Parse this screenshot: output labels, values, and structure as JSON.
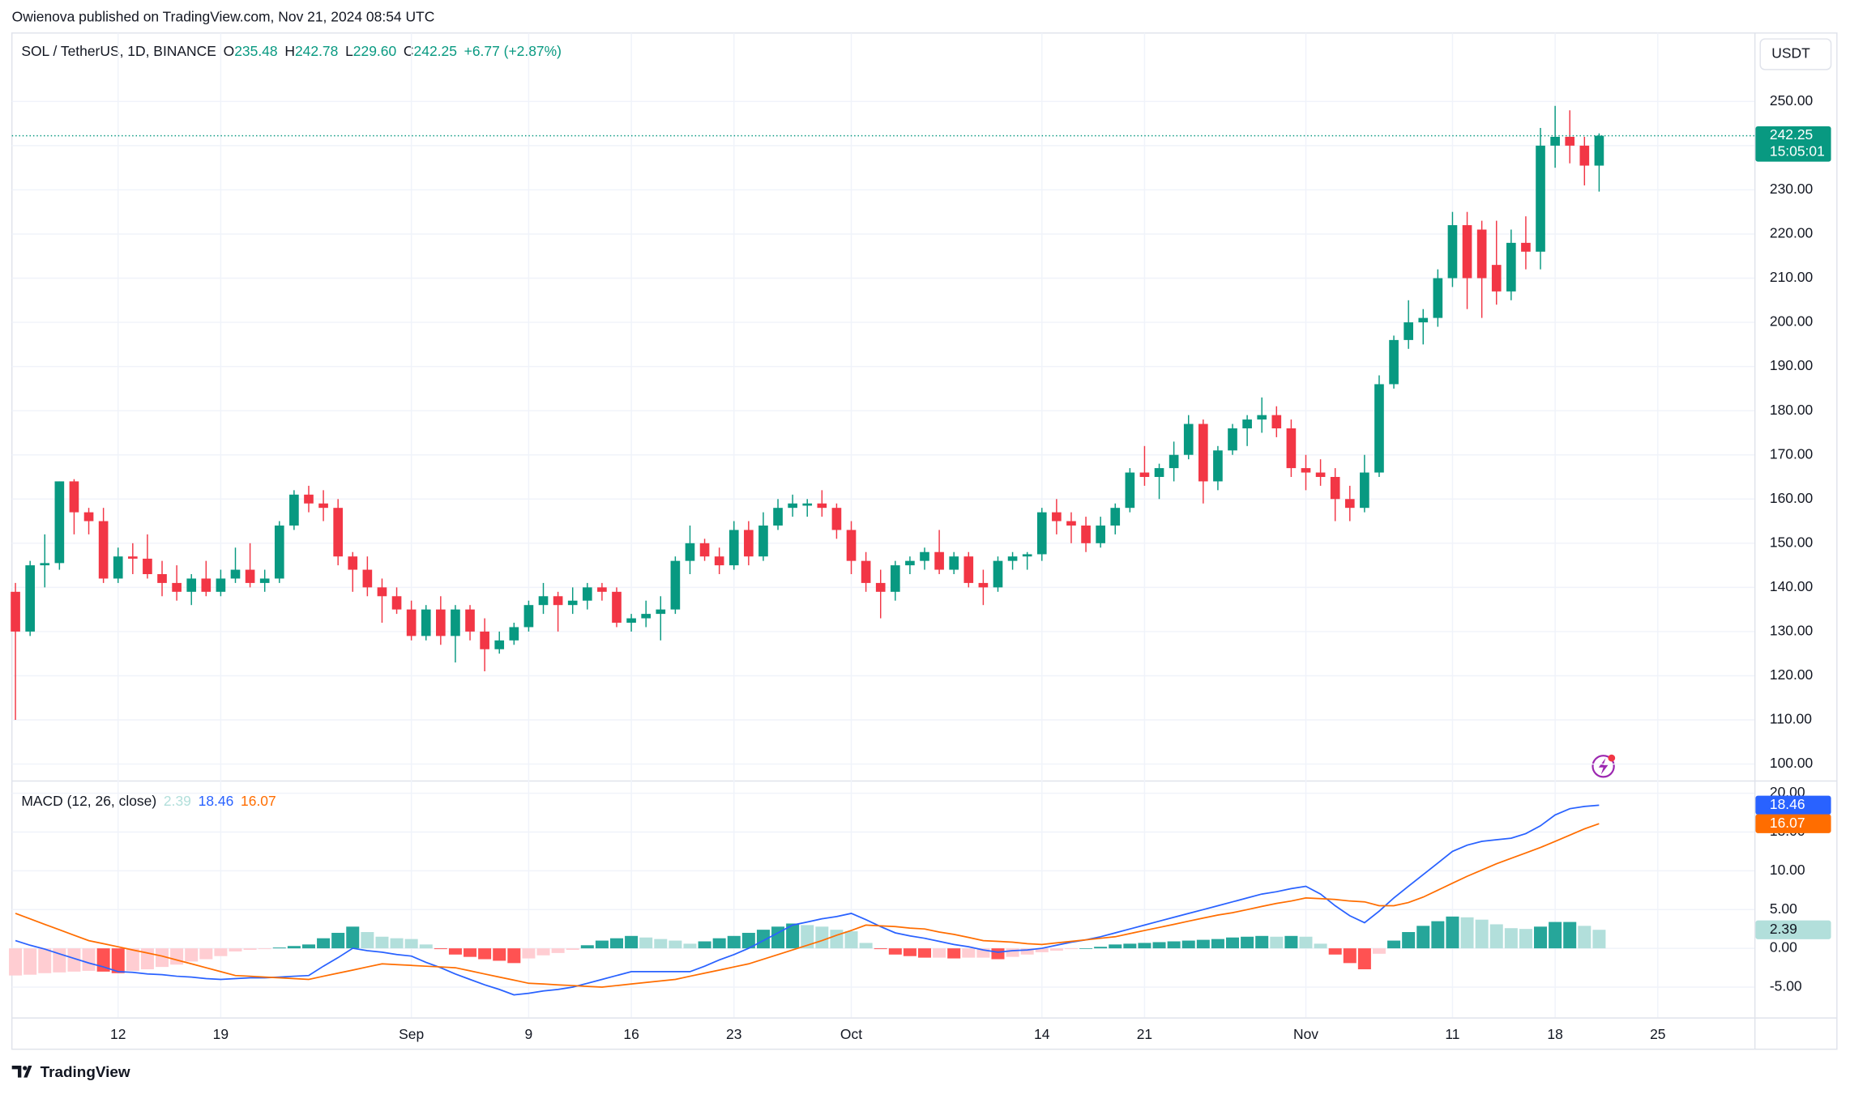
{
  "header": {
    "published": "Owienova published on TradingView.com, Nov 21, 2024 08:54 UTC",
    "symbol": "SOL / TetherUS, 1D, BINANCE",
    "ohlc": [
      {
        "key": "O",
        "value": "235.48"
      },
      {
        "key": "H",
        "value": "242.78"
      },
      {
        "key": "L",
        "value": "229.60"
      },
      {
        "key": "C",
        "value": "242.25"
      }
    ],
    "change": "+6.77 (+2.87%)",
    "currency": "USDT",
    "countdown": "15:05:01",
    "brand": "TradingView"
  },
  "chart_data": [
    {
      "type": "candlestick",
      "up_color": "#089981",
      "down_color": "#f23645",
      "grid": true,
      "open": [
        139,
        130,
        145,
        145.5,
        164,
        157,
        155,
        142,
        147,
        146.5,
        143,
        141,
        139,
        142,
        139,
        142,
        144,
        141,
        142,
        154,
        161,
        159,
        158,
        147,
        144,
        140,
        138,
        135,
        129,
        135,
        129,
        135,
        130,
        126,
        128,
        131,
        136,
        138,
        136,
        137,
        140,
        139,
        132,
        133,
        134,
        135,
        146,
        150,
        147,
        145,
        153,
        147,
        154,
        158,
        158.5,
        159,
        158,
        153,
        146,
        141,
        139,
        145,
        146,
        148,
        144,
        147,
        141,
        140,
        146,
        147,
        147.5,
        157,
        155,
        154,
        150,
        154,
        158,
        166,
        165,
        167,
        170,
        177,
        164,
        171,
        176,
        178,
        179,
        176,
        167,
        166,
        165,
        160,
        158,
        166,
        186,
        196,
        200,
        201,
        210,
        222,
        221,
        213,
        207,
        218,
        216,
        240,
        242,
        240,
        235.48
      ],
      "high": [
        141,
        146,
        152,
        164,
        164.5,
        158,
        158,
        149,
        150,
        152,
        146,
        145,
        143,
        146,
        144,
        149,
        150,
        144,
        155,
        162,
        163,
        162,
        160,
        148,
        147,
        142,
        140,
        137,
        136,
        138,
        136,
        136,
        133,
        130,
        132,
        137,
        141,
        139,
        140,
        141,
        141,
        140,
        134,
        137,
        138,
        147,
        154,
        151,
        149,
        155,
        155,
        157,
        160,
        161,
        160,
        162,
        159,
        155,
        148,
        144,
        146,
        147,
        149,
        153,
        148,
        148,
        144,
        147,
        148,
        148,
        158,
        160,
        157,
        156,
        156,
        159,
        167,
        172,
        168,
        173,
        179,
        178,
        172,
        177,
        179,
        183,
        181,
        178,
        170,
        169,
        167,
        163,
        170,
        188,
        197,
        205,
        203,
        212,
        225,
        225,
        223,
        223,
        221,
        224,
        244,
        249,
        248,
        242,
        242.78
      ],
      "low": [
        110,
        129,
        140,
        144,
        152,
        152,
        141,
        141,
        143,
        142,
        138,
        137,
        136,
        138,
        138,
        141,
        140,
        139,
        141,
        153,
        157,
        155,
        145,
        139,
        138,
        132,
        134,
        128,
        128,
        127,
        123,
        128,
        121,
        125,
        127,
        130,
        134,
        130,
        134,
        135,
        137,
        131,
        130,
        131,
        128,
        134,
        143,
        146,
        143,
        144,
        145,
        146,
        153,
        156,
        156,
        156,
        151,
        143,
        139,
        133,
        137,
        143,
        144,
        143,
        143,
        140,
        136,
        139,
        144,
        144,
        146,
        152,
        150,
        148,
        149,
        152,
        157,
        163,
        160,
        164,
        169,
        159,
        162,
        170,
        172,
        175,
        174,
        165,
        162,
        163,
        155,
        155,
        157,
        165,
        185,
        194,
        195,
        199,
        208,
        203,
        201,
        204,
        205,
        212,
        212,
        235,
        236,
        231,
        229.6
      ],
      "close": [
        130,
        145,
        145.5,
        164,
        157,
        155,
        142,
        147,
        146.5,
        143,
        141,
        139,
        142,
        139,
        142,
        144,
        141,
        142,
        154,
        161,
        159,
        158,
        147,
        144,
        140,
        138,
        135,
        129,
        135,
        129,
        135,
        130,
        126,
        128,
        131,
        136,
        138,
        136,
        137,
        140,
        139,
        132,
        133,
        134,
        135,
        146,
        150,
        147,
        145,
        153,
        147,
        154,
        158,
        159,
        159,
        158,
        153,
        146,
        141,
        139,
        145,
        146,
        148,
        144,
        147,
        141,
        140,
        146,
        147,
        147.5,
        157,
        155,
        154,
        150,
        154,
        158,
        166,
        165,
        167,
        170,
        177,
        164,
        171,
        176,
        178,
        179,
        176,
        167,
        166,
        165,
        160,
        158,
        166,
        186,
        196,
        200,
        201,
        210,
        222,
        210,
        210,
        207,
        218,
        216,
        240,
        242,
        240,
        235.48,
        242.25
      ],
      "ylim": [
        96.3,
        265.5
      ],
      "yticks": [
        {
          "value": 100,
          "label": "100.00"
        },
        {
          "value": 110,
          "label": "110.00"
        },
        {
          "value": 120,
          "label": "120.00"
        },
        {
          "value": 130,
          "label": "130.00"
        },
        {
          "value": 140,
          "label": "140.00"
        },
        {
          "value": 150,
          "label": "150.00"
        },
        {
          "value": 160,
          "label": "160.00"
        },
        {
          "value": 170,
          "label": "170.00"
        },
        {
          "value": 180,
          "label": "180.00"
        },
        {
          "value": 190,
          "label": "190.00"
        },
        {
          "value": 200,
          "label": "200.00"
        },
        {
          "value": 210,
          "label": "210.00"
        },
        {
          "value": 220,
          "label": "220.00"
        },
        {
          "value": 230,
          "label": "230.00"
        },
        {
          "value": 240,
          "label": "240.00"
        },
        {
          "value": 250,
          "label": "250.00"
        }
      ],
      "xticks": [
        {
          "value": 7,
          "label": "12"
        },
        {
          "value": 14,
          "label": "19"
        },
        {
          "value": 27,
          "label": "Sep"
        },
        {
          "value": 35,
          "label": "9"
        },
        {
          "value": 42,
          "label": "16"
        },
        {
          "value": 49,
          "label": "23"
        },
        {
          "value": 57,
          "label": "Oct"
        },
        {
          "value": 70,
          "label": "14"
        },
        {
          "value": 77,
          "label": "21"
        },
        {
          "value": 88,
          "label": "Nov"
        },
        {
          "value": 98,
          "label": "11"
        },
        {
          "value": 105,
          "label": "18"
        },
        {
          "value": 112,
          "label": "25"
        }
      ]
    },
    {
      "type": "macd",
      "title": "MACD (12, 26, close)",
      "grid": true,
      "ylim": [
        -8.9,
        21.5
      ],
      "yticks": [
        {
          "value": -5,
          "label": "-5.00"
        },
        {
          "value": 0,
          "label": "0.00"
        },
        {
          "value": 5,
          "label": "5.00"
        },
        {
          "value": 10,
          "label": "10.00"
        },
        {
          "value": 15,
          "label": "15.00"
        },
        {
          "value": 20,
          "label": "20.00"
        }
      ],
      "series": [
        {
          "kind": "histogram",
          "colors": [
            "#26a69a",
            "#b2dfdb",
            "#ffcdd2",
            "#ff5252"
          ],
          "values": [
            -3.5,
            -3.4,
            -3.2,
            -3.1,
            -3.0,
            -2.9,
            -3.0,
            -3.2,
            -2.9,
            -2.7,
            -2.4,
            -2.1,
            -1.7,
            -1.4,
            -1,
            -0.4,
            -0.2,
            -0.1,
            0.1,
            0.3,
            0.5,
            1.3,
            2.0,
            2.8,
            2.1,
            1.5,
            1.3,
            1.2,
            0.5,
            -0.1,
            -0.8,
            -1.1,
            -1.4,
            -1.6,
            -1.9,
            -1.3,
            -0.9,
            -0.6,
            -0.2,
            0.4,
            1,
            1.3,
            1.6,
            1.4,
            1.2,
            1.0,
            0.6,
            0.9,
            1.3,
            1.6,
            2,
            2.4,
            2.8,
            3.2,
            3.0,
            2.8,
            2.4,
            2.2,
            0.7,
            -0.1,
            -0.8,
            -1.0,
            -1.2,
            -1.2,
            -1.3,
            -1.2,
            -1.2,
            -1.4,
            -1.1,
            -0.8,
            -0.5,
            -0.3,
            -0.1,
            0,
            0.2,
            0.5,
            0.6,
            0.7,
            0.8,
            0.9,
            1.0,
            1.1,
            1.2,
            1.4,
            1.5,
            1.6,
            1.5,
            1.6,
            1.5,
            0.6,
            -0.8,
            -1.9,
            -2.7,
            -0.7,
            1.0,
            2.1,
            2.9,
            3.5,
            4.1,
            4.0,
            3.7,
            3.1,
            2.6,
            2.5,
            2.8,
            3.4,
            3.4,
            2.9,
            2.39
          ]
        },
        {
          "kind": "line",
          "color": "#2962ff",
          "values": [
            1,
            0.4,
            -0.1,
            -0.7,
            -1.3,
            -1.9,
            -2.4,
            -3,
            -3.1,
            -3.3,
            -3.4,
            -3.6,
            -3.7,
            -3.9,
            -4,
            -3.9,
            -3.8,
            -3.8,
            -3.7,
            -3.6,
            -3.5,
            -2.3,
            -1.2,
            0,
            -0.3,
            -0.5,
            -0.8,
            -1,
            -1.8,
            -2.5,
            -3.3,
            -4,
            -4.7,
            -5.3,
            -6,
            -5.8,
            -5.5,
            -5.3,
            -5,
            -4.5,
            -4,
            -3.5,
            -3,
            -3,
            -3,
            -3,
            -3,
            -2.3,
            -1.5,
            -0.8,
            0,
            1,
            2,
            3,
            3.4,
            3.8,
            4.1,
            4.5,
            3.7,
            2.8,
            2,
            1.6,
            1.3,
            0.9,
            0.5,
            0.2,
            -0.2,
            -0.5,
            -0.3,
            -0.2,
            0,
            0.4,
            0.8,
            1.1,
            1.5,
            2,
            2.5,
            3,
            3.5,
            4,
            4.5,
            5,
            5.5,
            6,
            6.5,
            7,
            7.3,
            7.7,
            8,
            7,
            5.5,
            4.2,
            3.3,
            4.8,
            6.5,
            8,
            9.5,
            11,
            12.5,
            13.3,
            13.8,
            14,
            14.2,
            14.8,
            15.8,
            17.2,
            18,
            18.3,
            18.46
          ]
        },
        {
          "kind": "line",
          "color": "#ff6d00",
          "values": [
            4.5,
            3.8,
            3.1,
            2.4,
            1.7,
            1,
            0.6,
            0.2,
            -0.2,
            -0.6,
            -1,
            -1.5,
            -2,
            -2.5,
            -3,
            -3.5,
            -3.6,
            -3.7,
            -3.8,
            -3.9,
            -4,
            -3.6,
            -3.2,
            -2.8,
            -2.4,
            -2,
            -2.1,
            -2.2,
            -2.3,
            -2.4,
            -2.5,
            -2.9,
            -3.3,
            -3.7,
            -4.1,
            -4.5,
            -4.6,
            -4.7,
            -4.8,
            -4.9,
            -5,
            -4.8,
            -4.6,
            -4.4,
            -4.2,
            -4,
            -3.6,
            -3.2,
            -2.8,
            -2.4,
            -2,
            -1.4,
            -0.8,
            -0.2,
            0.4,
            1,
            1.7,
            2.3,
            3,
            2.9,
            2.8,
            2.6,
            2.5,
            2.1,
            1.8,
            1.4,
            1,
            0.9,
            0.8,
            0.6,
            0.5,
            0.7,
            0.9,
            1.1,
            1.3,
            1.5,
            1.9,
            2.3,
            2.7,
            3.1,
            3.5,
            3.9,
            4.3,
            4.6,
            5,
            5.4,
            5.8,
            6.1,
            6.5,
            6.4,
            6.3,
            6.1,
            6,
            5.5,
            5.5,
            5.9,
            6.6,
            7.5,
            8.4,
            9.3,
            10.1,
            10.9,
            11.6,
            12.3,
            13,
            13.8,
            14.6,
            15.4,
            16.07
          ]
        }
      ]
    }
  ]
}
